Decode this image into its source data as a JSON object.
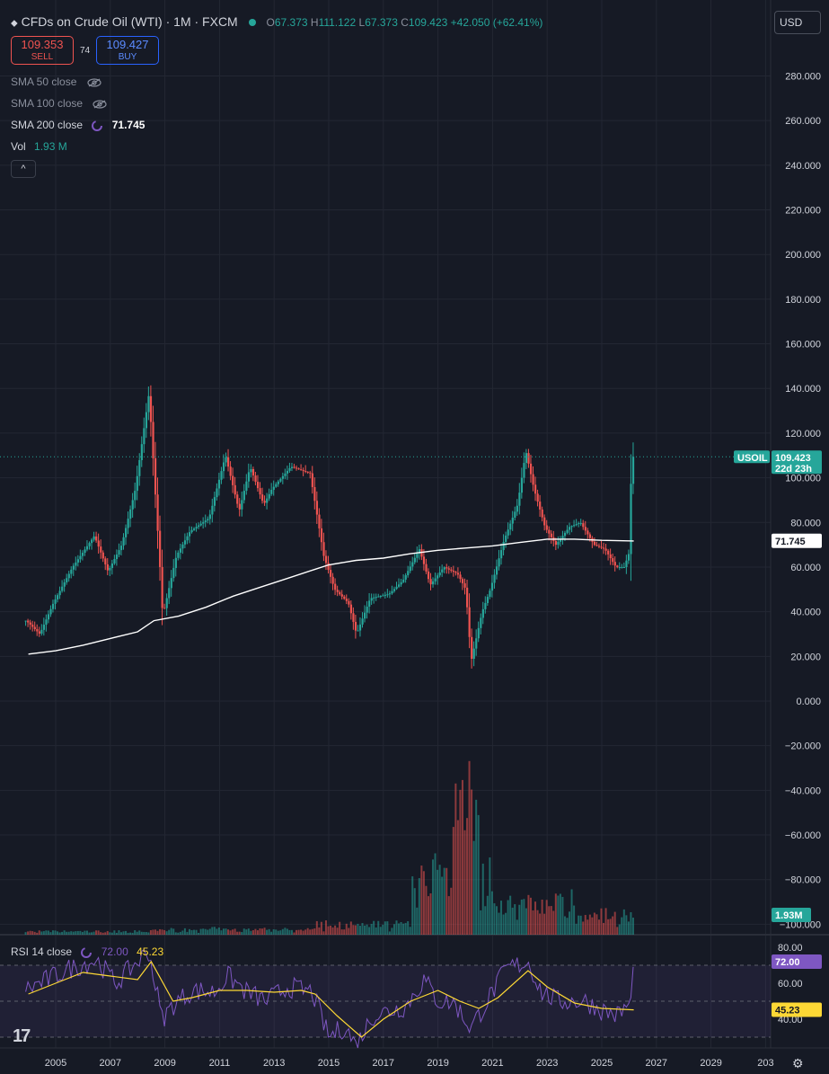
{
  "header": {
    "symbol_title": "CFDs on Crude Oil (WTI) · 1M · FXCM",
    "ohlc": {
      "o_label": "O",
      "o": "67.373",
      "h_label": "H",
      "h": "111.122",
      "l_label": "L",
      "l": "67.373",
      "c_label": "C",
      "c": "109.423",
      "change": "+42.050 (+62.41%)"
    }
  },
  "trade": {
    "sell_price": "109.353",
    "sell_label": "SELL",
    "spread": "74",
    "buy_price": "109.427",
    "buy_label": "BUY"
  },
  "currency": {
    "label": "USD"
  },
  "indicators": {
    "sma50": "SMA 50 close",
    "sma100": "SMA 100 close",
    "sma200": "SMA 200 close",
    "sma200_value": "71.745",
    "vol": "Vol",
    "vol_value": "1.93 M",
    "collapse_symbol": "^"
  },
  "rsi": {
    "label": "RSI 14 close",
    "value": "72.00",
    "ma_value": "45.23"
  },
  "badges": {
    "symbol": "USOIL",
    "price": "109.423",
    "countdown": "22d 23h",
    "sma": "71.745",
    "vol": "1.93M",
    "rsi": "72.00",
    "rsi_ma": "45.23"
  },
  "colors": {
    "up": "#26a69a",
    "down": "#ef5350",
    "sma": "#ffffff",
    "rsi": "#7e57c2",
    "rsi_ma": "#fdd835",
    "bg": "#161a25",
    "grid": "#232733"
  },
  "chart_data": {
    "type": "candlestick",
    "price_ticks": [
      "280.000",
      "260.000",
      "240.000",
      "220.000",
      "200.000",
      "180.000",
      "160.000",
      "140.000",
      "120.000",
      "100.000",
      "80.000",
      "60.000",
      "40.000",
      "20.000",
      "0.000",
      "−20.000",
      "−40.000",
      "−60.000",
      "−80.000",
      "−100.000"
    ],
    "x_ticks": [
      "2005",
      "2007",
      "2009",
      "2011",
      "2013",
      "2015",
      "2017",
      "2019",
      "2021",
      "2023",
      "2025",
      "2027",
      "2029",
      "203"
    ],
    "rsi_ticks": [
      "80.00",
      "60.00",
      "40.00"
    ],
    "price_keypoints": [
      [
        2004.0,
        36
      ],
      [
        2004.5,
        30
      ],
      [
        2005.0,
        44
      ],
      [
        2005.7,
        60
      ],
      [
        2006.5,
        74
      ],
      [
        2007.0,
        58
      ],
      [
        2007.5,
        70
      ],
      [
        2008.0,
        95
      ],
      [
        2008.5,
        138
      ],
      [
        2008.9,
        60
      ],
      [
        2009.0,
        38
      ],
      [
        2009.5,
        65
      ],
      [
        2010.0,
        76
      ],
      [
        2010.7,
        82
      ],
      [
        2011.3,
        110
      ],
      [
        2011.8,
        85
      ],
      [
        2012.2,
        105
      ],
      [
        2012.7,
        88
      ],
      [
        2013.0,
        95
      ],
      [
        2013.7,
        105
      ],
      [
        2014.4,
        102
      ],
      [
        2014.9,
        65
      ],
      [
        2015.3,
        50
      ],
      [
        2015.8,
        44
      ],
      [
        2016.1,
        30
      ],
      [
        2016.6,
        46
      ],
      [
        2017.3,
        48
      ],
      [
        2017.8,
        54
      ],
      [
        2018.4,
        68
      ],
      [
        2018.8,
        52
      ],
      [
        2019.3,
        60
      ],
      [
        2019.8,
        57
      ],
      [
        2020.1,
        50
      ],
      [
        2020.3,
        18
      ],
      [
        2020.7,
        40
      ],
      [
        2021.0,
        50
      ],
      [
        2021.5,
        72
      ],
      [
        2022.0,
        88
      ],
      [
        2022.3,
        112
      ],
      [
        2022.6,
        95
      ],
      [
        2023.0,
        78
      ],
      [
        2023.4,
        70
      ],
      [
        2023.9,
        78
      ],
      [
        2024.3,
        80
      ],
      [
        2024.8,
        70
      ],
      [
        2025.2,
        68
      ],
      [
        2025.6,
        60
      ],
      [
        2025.9,
        60
      ],
      [
        2026.1,
        67
      ],
      [
        2026.17,
        109.4
      ]
    ],
    "sma200_keypoints": [
      [
        2004.0,
        21
      ],
      [
        2005.0,
        22.5
      ],
      [
        2006.0,
        25
      ],
      [
        2007.0,
        28
      ],
      [
        2008.0,
        31
      ],
      [
        2008.6,
        36
      ],
      [
        2009.5,
        38
      ],
      [
        2010.5,
        42
      ],
      [
        2011.5,
        47
      ],
      [
        2012.5,
        51
      ],
      [
        2013.5,
        55
      ],
      [
        2014.5,
        59
      ],
      [
        2015.0,
        61
      ],
      [
        2016.0,
        63
      ],
      [
        2017.0,
        64
      ],
      [
        2018.0,
        66
      ],
      [
        2019.0,
        67.5
      ],
      [
        2020.0,
        68.5
      ],
      [
        2021.0,
        69.5
      ],
      [
        2022.0,
        71
      ],
      [
        2023.0,
        72.5
      ],
      [
        2024.0,
        72.5
      ],
      [
        2025.0,
        72
      ],
      [
        2026.17,
        71.7
      ]
    ],
    "rsi_keypoints": [
      [
        2004.0,
        57
      ],
      [
        2004.7,
        62
      ],
      [
        2005.5,
        68
      ],
      [
        2006.5,
        73
      ],
      [
        2007.2,
        60
      ],
      [
        2008.4,
        78
      ],
      [
        2008.9,
        40
      ],
      [
        2009.3,
        48
      ],
      [
        2010.0,
        56
      ],
      [
        2010.8,
        55
      ],
      [
        2011.3,
        64
      ],
      [
        2012.0,
        55
      ],
      [
        2012.7,
        50
      ],
      [
        2013.5,
        58
      ],
      [
        2014.4,
        55
      ],
      [
        2015.0,
        30
      ],
      [
        2015.6,
        36
      ],
      [
        2016.0,
        25
      ],
      [
        2016.6,
        42
      ],
      [
        2017.3,
        45
      ],
      [
        2017.8,
        47
      ],
      [
        2018.5,
        62
      ],
      [
        2019.0,
        50
      ],
      [
        2019.6,
        49
      ],
      [
        2020.2,
        35
      ],
      [
        2020.8,
        50
      ],
      [
        2021.5,
        68
      ],
      [
        2022.3,
        72
      ],
      [
        2022.8,
        55
      ],
      [
        2023.4,
        50
      ],
      [
        2023.9,
        50
      ],
      [
        2024.4,
        50
      ],
      [
        2025.0,
        45
      ],
      [
        2025.6,
        42
      ],
      [
        2026.1,
        50
      ],
      [
        2026.17,
        72
      ]
    ],
    "rsi_ma_keypoints": [
      [
        2004.0,
        54
      ],
      [
        2005.0,
        60
      ],
      [
        2006.0,
        66
      ],
      [
        2007.0,
        64
      ],
      [
        2008.0,
        62
      ],
      [
        2008.5,
        72
      ],
      [
        2009.3,
        50
      ],
      [
        2010.0,
        52
      ],
      [
        2011.0,
        56
      ],
      [
        2012.0,
        56
      ],
      [
        2013.0,
        55
      ],
      [
        2014.0,
        56
      ],
      [
        2014.5,
        54
      ],
      [
        2015.3,
        42
      ],
      [
        2016.2,
        30
      ],
      [
        2017.0,
        40
      ],
      [
        2018.0,
        50
      ],
      [
        2019.0,
        56
      ],
      [
        2019.8,
        50
      ],
      [
        2020.5,
        46
      ],
      [
        2021.2,
        52
      ],
      [
        2022.3,
        67
      ],
      [
        2023.0,
        58
      ],
      [
        2024.0,
        49
      ],
      [
        2025.0,
        46
      ],
      [
        2026.17,
        45.2
      ]
    ]
  }
}
